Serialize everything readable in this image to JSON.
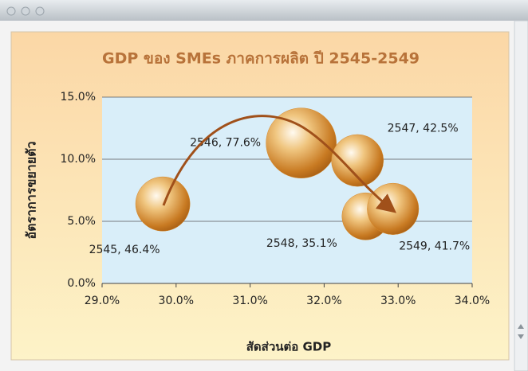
{
  "chart_data": {
    "type": "bubble",
    "title": "GDP ของ SMEs ภาคการผลิต ปี 2545-2549",
    "x_label": "สัดส่วนต่อ GDP",
    "y_label": "อัตราการขยายตัว",
    "series": [
      {
        "name": "SMEs",
        "color": "#d88a2c",
        "x": [
          29.82,
          31.69,
          32.45,
          32.56,
          32.93
        ],
        "values": [
          6.4,
          11.3,
          9.9,
          5.4,
          6.0
        ],
        "sizes": [
          46.4,
          77.6,
          42.5,
          35.1,
          41.7
        ],
        "value_labels": [
          "2545, 46.4%",
          "2546, 77.6%",
          "2547, 42.5%",
          "2548, 35.1%",
          "2549, 41.7%"
        ]
      }
    ],
    "xlim": [
      29,
      34
    ],
    "xticks": [
      {
        "value": 29,
        "label": "29.0%"
      },
      {
        "value": 30,
        "label": "30.0%"
      },
      {
        "value": 31,
        "label": "31.0%"
      },
      {
        "value": 32,
        "label": "32.0%"
      },
      {
        "value": 33,
        "label": "33.0%"
      },
      {
        "value": 34,
        "label": "34.0%"
      }
    ],
    "ylim": [
      0,
      15
    ],
    "yticks": [
      {
        "value": 0,
        "label": "0.0%"
      },
      {
        "value": 5,
        "label": "5.0%"
      },
      {
        "value": 10,
        "label": "10.0%"
      },
      {
        "value": 15,
        "label": "15.0%"
      }
    ],
    "grid": true
  }
}
